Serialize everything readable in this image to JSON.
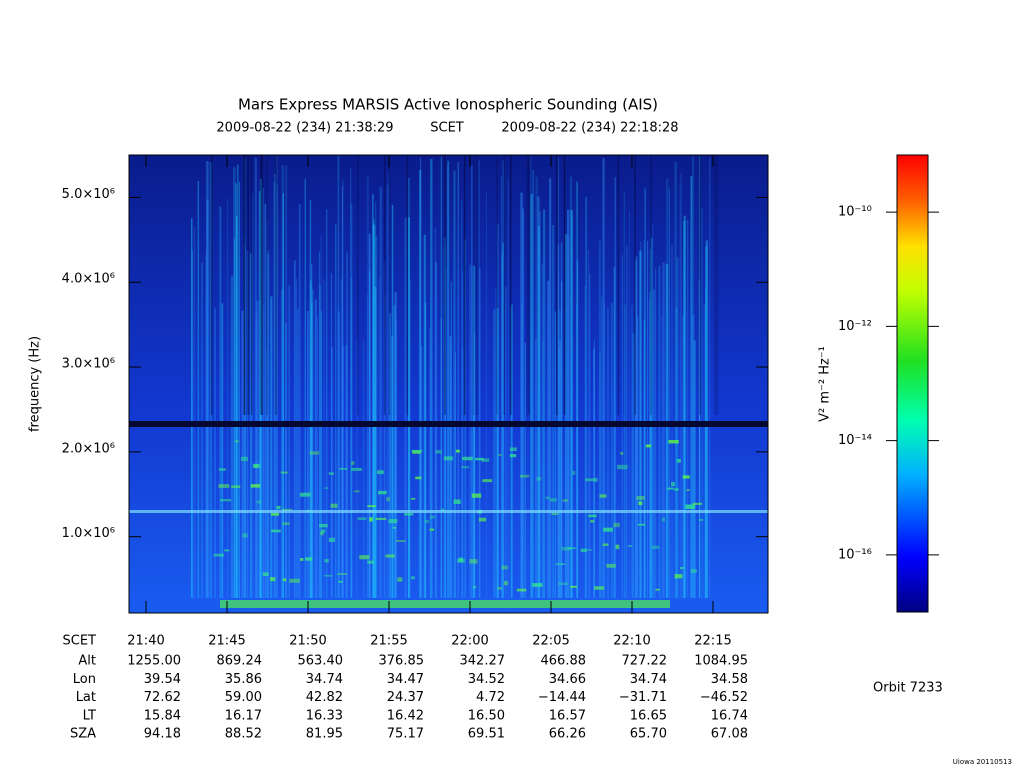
{
  "chart_data": {
    "type": "spectrogram",
    "title": "Mars Express MARSIS Active Ionospheric Sounding (AIS)",
    "start_time": "2009-08-22 (234) 21:38:29",
    "time_label": "SCET",
    "end_time": "2009-08-22 (234) 22:18:28",
    "ylabel": "frequency (Hz)",
    "ylim": [
      100000,
      5500000
    ],
    "yticks": [
      {
        "value": 1000000,
        "label": "1.0×10⁶"
      },
      {
        "value": 2000000,
        "label": "2.0×10⁶"
      },
      {
        "value": 3000000,
        "label": "3.0×10⁶"
      },
      {
        "value": 4000000,
        "label": "4.0×10⁶"
      },
      {
        "value": 5000000,
        "label": "5.0×10⁶"
      }
    ],
    "xticks": [
      "21:40",
      "21:45",
      "21:50",
      "21:55",
      "22:00",
      "22:05",
      "22:10",
      "22:15"
    ],
    "ephemeris": [
      {
        "label": "Alt",
        "values": [
          "1255.00",
          "869.24",
          "563.40",
          "376.85",
          "342.27",
          "466.88",
          "727.22",
          "1084.95"
        ]
      },
      {
        "label": "Lon",
        "values": [
          "39.54",
          "35.86",
          "34.74",
          "34.47",
          "34.52",
          "34.66",
          "34.74",
          "34.58"
        ]
      },
      {
        "label": "Lat",
        "values": [
          "72.62",
          "59.00",
          "42.82",
          "24.37",
          "4.72",
          "−14.44",
          "−31.71",
          "−46.52"
        ]
      },
      {
        "label": "LT",
        "values": [
          "15.84",
          "16.17",
          "16.33",
          "16.42",
          "16.50",
          "16.57",
          "16.65",
          "16.74"
        ]
      },
      {
        "label": "SZA",
        "values": [
          "94.18",
          "88.52",
          "81.95",
          "75.17",
          "69.51",
          "66.26",
          "65.70",
          "67.08"
        ]
      }
    ],
    "colorbar": {
      "label": "V² m⁻² Hz⁻¹",
      "log": true,
      "lim": [
        1e-17,
        1e-09
      ],
      "ticks": [
        {
          "value": 1e-10,
          "label": "10⁻¹⁰"
        },
        {
          "value": 1e-12,
          "label": "10⁻¹²"
        },
        {
          "value": 1e-14,
          "label": "10⁻¹⁴"
        },
        {
          "value": 1e-16,
          "label": "10⁻¹⁶"
        }
      ]
    },
    "orbit": "Orbit 7233",
    "footer": "Uiowa 20110513"
  }
}
